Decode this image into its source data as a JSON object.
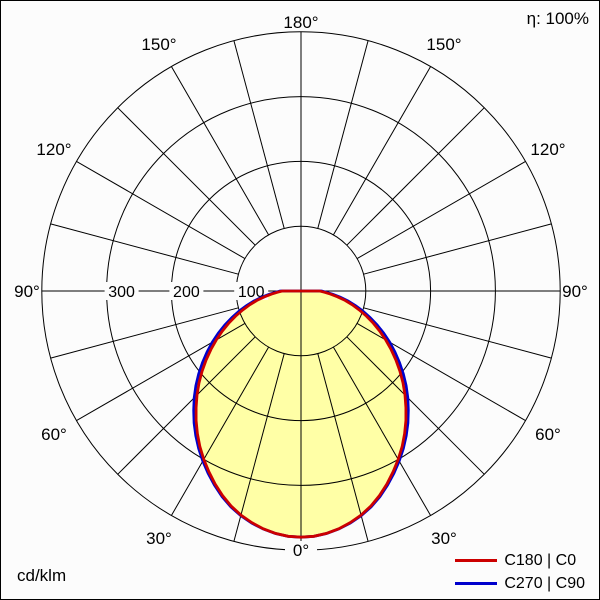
{
  "page": {
    "background": "#fcfcfc"
  },
  "header": {
    "efficiency": "η: 100%"
  },
  "footer": {
    "unit": "cd/klm"
  },
  "legend": {
    "items": [
      {
        "label": "C180 | C0",
        "color": "#cc0000"
      },
      {
        "label": "C270 | C90",
        "color": "#0000cc"
      }
    ]
  },
  "chart_data": {
    "type": "line",
    "subtype": "polar-luminous-intensity-distribution",
    "unit": "cd/klm",
    "efficiency_label": "η: 100%",
    "radial_axis": {
      "ticks": [
        100,
        200,
        300
      ],
      "tick_labels": [
        "100",
        "200",
        "300"
      ],
      "max": 400
    },
    "angle_axis": {
      "step_deg": 15,
      "label_step_deg": 30,
      "labels": [
        "0°",
        "30°",
        "60°",
        "90°",
        "120°",
        "150°",
        "180°"
      ]
    },
    "gamma_deg": [
      0,
      15,
      30,
      45,
      60,
      75,
      90
    ],
    "series": [
      {
        "name": "C270 | C90",
        "color": "#0000cc",
        "values": [
          380,
          359,
          303,
          233,
          158,
          87,
          32
        ]
      },
      {
        "name": "C180 | C0",
        "color": "#cc0000",
        "values": [
          380,
          358,
          300,
          227,
          151,
          82,
          29
        ]
      }
    ],
    "fill_color": "#ffffa6",
    "grid_color": "#000000",
    "legend_position": "bottom-right"
  }
}
